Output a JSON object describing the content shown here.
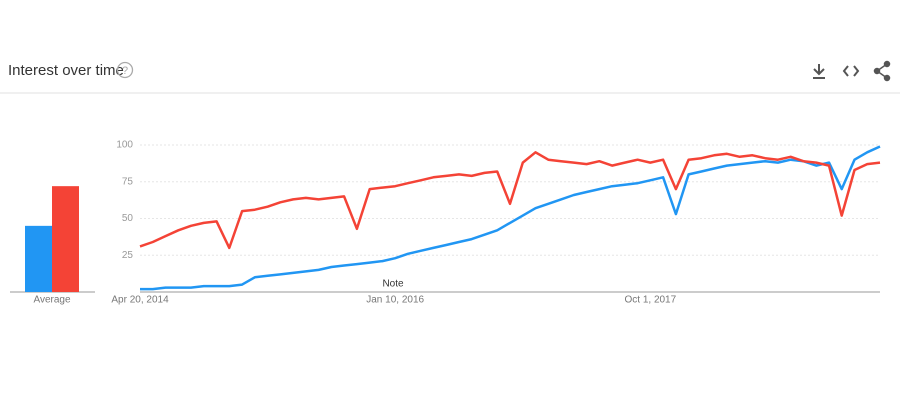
{
  "chart_data": {
    "type": "line",
    "title": "Interest over time",
    "average_label": "Average",
    "annotation": "Note",
    "categories": [
      "Apr 20, 2014",
      null,
      null,
      null,
      null,
      null,
      null,
      null,
      null,
      null,
      null,
      null,
      null,
      null,
      null,
      null,
      null,
      null,
      null,
      null,
      "Jan 10, 2016",
      null,
      null,
      null,
      null,
      null,
      null,
      null,
      null,
      null,
      null,
      null,
      null,
      null,
      null,
      null,
      null,
      null,
      null,
      null,
      "Oct 1, 2017",
      null,
      null,
      null,
      null,
      null,
      null,
      null,
      null,
      null,
      null,
      null,
      null,
      null,
      null,
      null,
      null,
      null,
      null
    ],
    "series": [
      {
        "color": "#2196f3",
        "average": 45,
        "values": [
          2,
          2,
          3,
          3,
          3,
          4,
          4,
          4,
          5,
          10,
          11,
          12,
          13,
          14,
          15,
          17,
          18,
          19,
          20,
          21,
          23,
          26,
          28,
          30,
          32,
          34,
          36,
          39,
          42,
          47,
          52,
          57,
          60,
          63,
          66,
          68,
          70,
          72,
          73,
          74,
          76,
          78,
          53,
          80,
          82,
          84,
          86,
          87,
          88,
          89,
          88,
          90,
          89,
          86,
          88,
          70,
          90,
          95,
          99
        ]
      },
      {
        "color": "#f44336",
        "average": 72,
        "values": [
          31,
          34,
          38,
          42,
          45,
          47,
          48,
          30,
          55,
          56,
          58,
          61,
          63,
          64,
          63,
          64,
          65,
          43,
          70,
          71,
          72,
          74,
          76,
          78,
          79,
          80,
          79,
          81,
          82,
          60,
          88,
          95,
          90,
          89,
          88,
          87,
          89,
          86,
          88,
          90,
          88,
          90,
          70,
          90,
          91,
          93,
          94,
          92,
          93,
          91,
          90,
          92,
          89,
          88,
          86,
          52,
          83,
          87,
          88
        ]
      }
    ],
    "ylim": [
      0,
      100
    ],
    "yticks": [
      25,
      50,
      75,
      100
    ],
    "grid": true
  }
}
